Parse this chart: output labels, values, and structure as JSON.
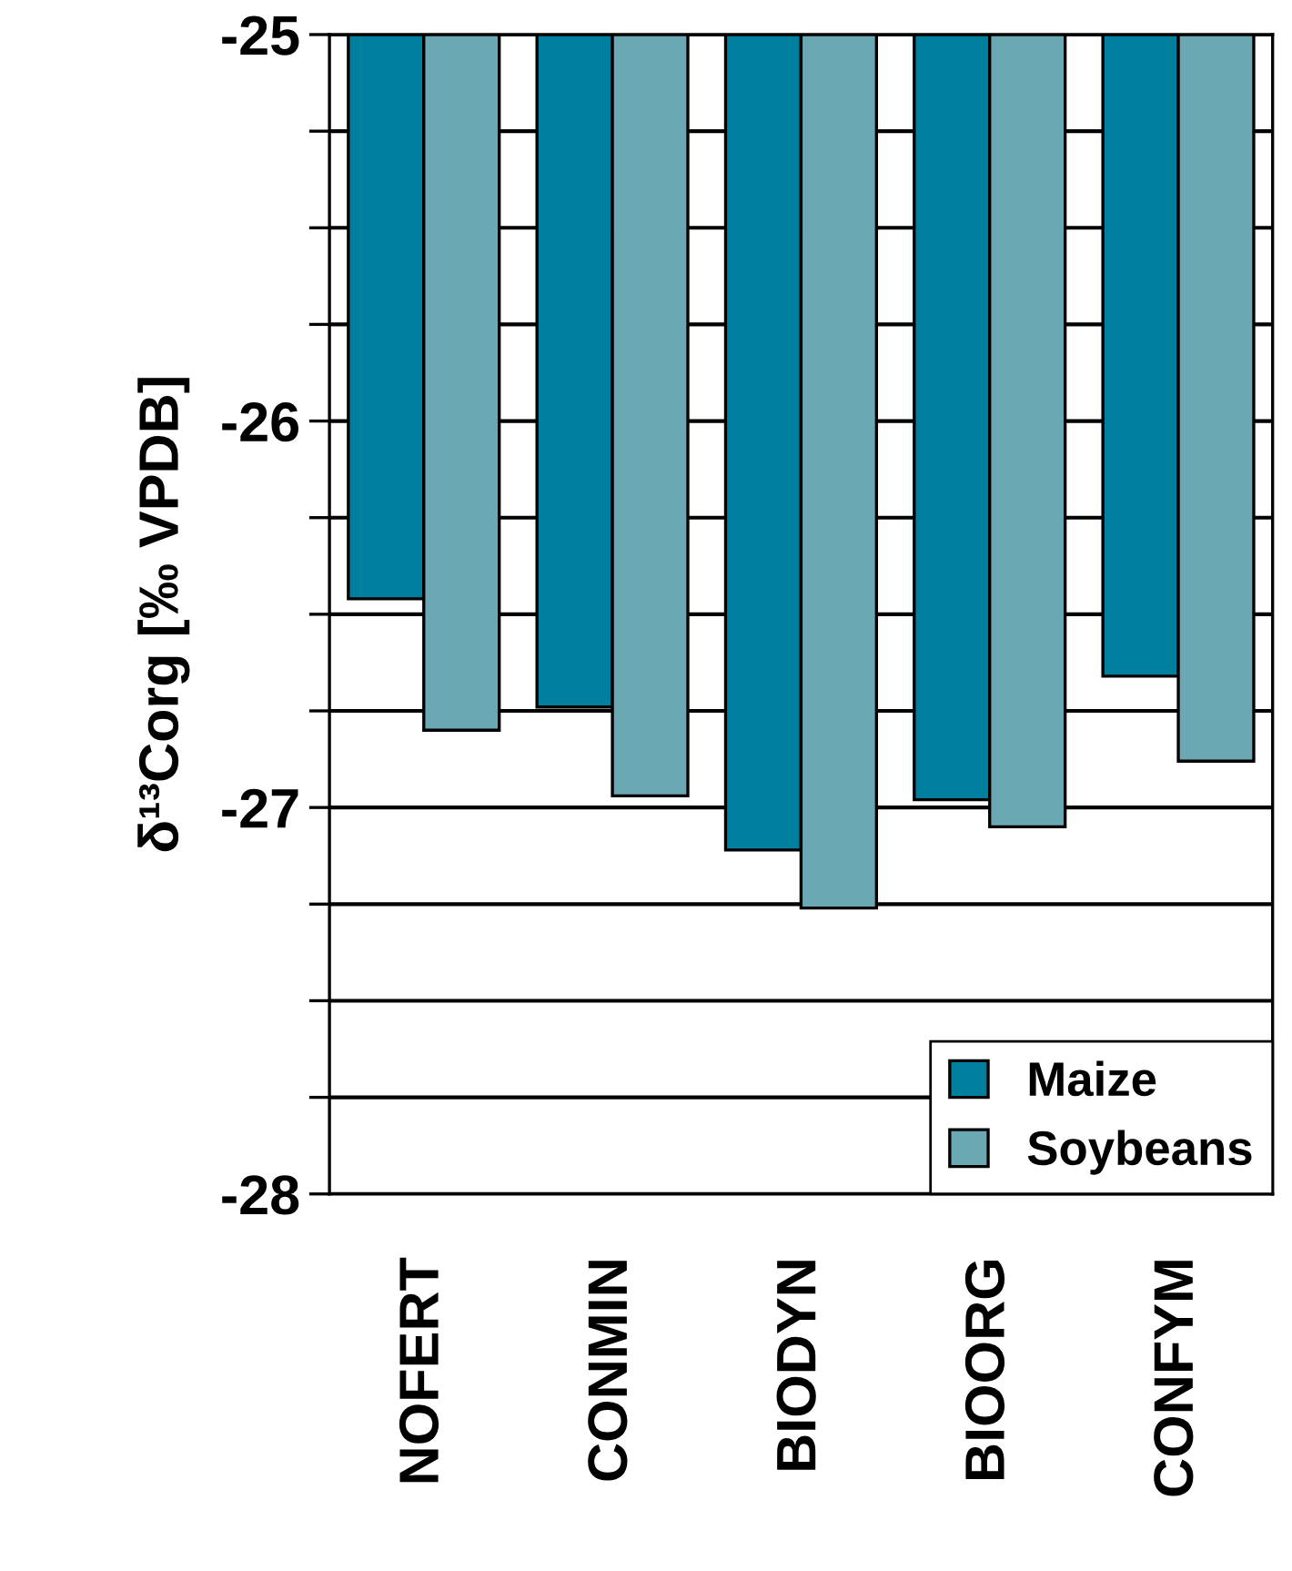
{
  "chart_data": {
    "type": "bar",
    "ylabel": "δ¹³Corg [‰ VPDB]",
    "categories": [
      "NOFERT",
      "CONMIN",
      "BIODYN",
      "BIOORG",
      "CONFYM"
    ],
    "series": [
      {
        "name": "Maize",
        "color": "#007f9f",
        "values": [
          -26.46,
          -26.74,
          -27.11,
          -26.98,
          -26.66
        ]
      },
      {
        "name": "Soybeans",
        "color": "#6aa8b4",
        "values": [
          -26.8,
          -26.97,
          -27.26,
          -27.05,
          -26.88
        ]
      }
    ],
    "ylim": [
      -28,
      -25
    ],
    "yticks": [
      -28,
      {
        "value": -27.75,
        "label": null
      },
      {
        "value": -27.5,
        "label": null
      },
      {
        "value": -27.25,
        "label": null
      },
      -27,
      {
        "value": -26.75,
        "label": null
      },
      {
        "value": -26.5,
        "label": null
      },
      {
        "value": -26.25,
        "label": null
      },
      -26,
      {
        "value": -25.75,
        "label": null
      },
      {
        "value": -25.5,
        "label": null
      },
      {
        "value": -25.25,
        "label": null
      },
      -25
    ],
    "grid": "y",
    "legend": "bottom right"
  }
}
